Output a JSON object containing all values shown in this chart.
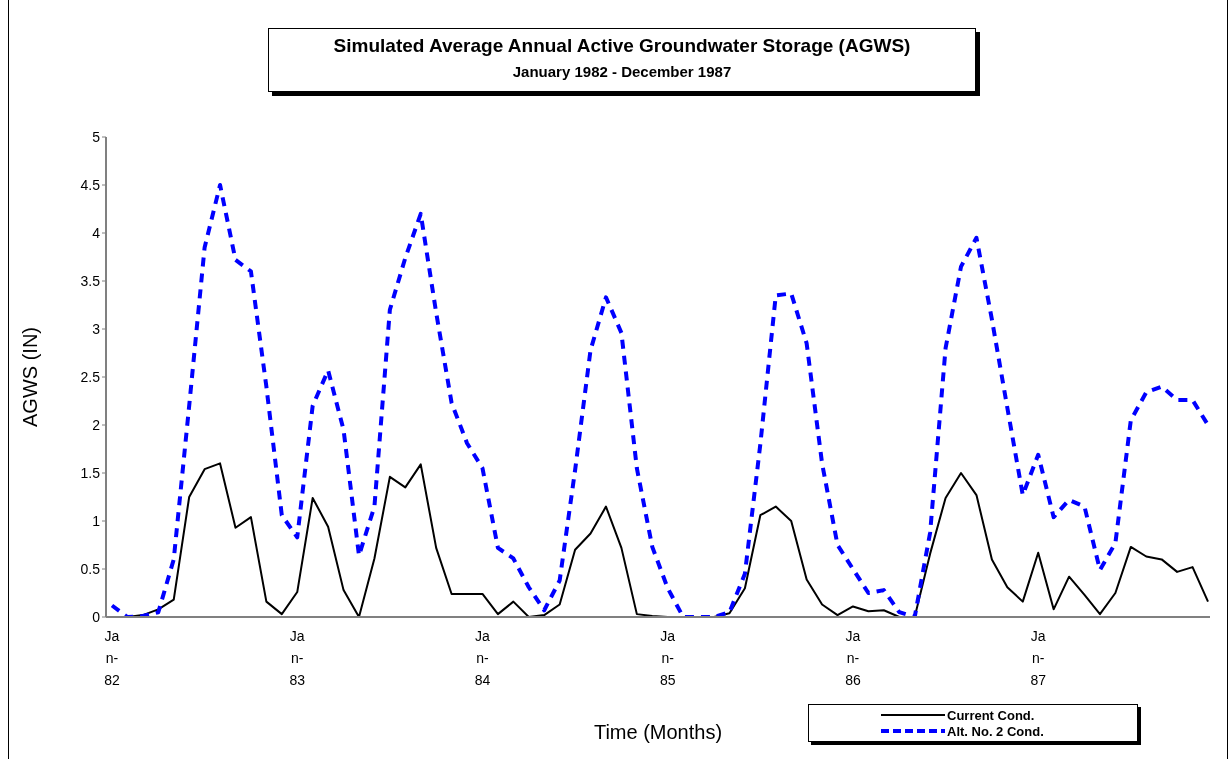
{
  "chart_data": {
    "type": "line",
    "title": "Simulated Average Annual Active Groundwater Storage (AGWS)",
    "subtitle": "January 1982 - December 1987",
    "xlabel": "Time (Months)",
    "ylabel": "AGWS (IN)",
    "categories": [
      "Jan-82",
      null,
      null,
      null,
      null,
      null,
      null,
      null,
      null,
      null,
      null,
      null,
      "Jan-83",
      null,
      null,
      null,
      null,
      null,
      null,
      null,
      null,
      null,
      null,
      null,
      "Jan-84",
      null,
      null,
      null,
      null,
      null,
      null,
      null,
      null,
      null,
      null,
      null,
      "Jan-85",
      null,
      null,
      null,
      null,
      null,
      null,
      null,
      null,
      null,
      null,
      null,
      "Jan-86",
      null,
      null,
      null,
      null,
      null,
      null,
      null,
      null,
      null,
      null,
      null,
      "Jan-87",
      null,
      null,
      null,
      null,
      null,
      null,
      null,
      null,
      null,
      null,
      null
    ],
    "ylim": [
      0,
      5
    ],
    "yticks": [
      0,
      0.5,
      1,
      1.5,
      2,
      2.5,
      3,
      3.5,
      4,
      4.5,
      5
    ],
    "grid": false,
    "legend": "bottom right",
    "marker": "none",
    "series": [
      {
        "name": "Current Cond.",
        "color": "#000000",
        "line_style": "solid",
        "values": [
          0,
          0,
          0.02,
          0.08,
          0.18,
          1.25,
          1.54,
          1.6,
          0.93,
          1.04,
          0.16,
          0.03,
          0.26,
          1.24,
          0.94,
          0.28,
          0,
          0.61,
          1.46,
          1.35,
          1.59,
          0.72,
          0.24,
          0.24,
          0.24,
          0.03,
          0.16,
          0,
          0.02,
          0.13,
          0.7,
          0.87,
          1.15,
          0.72,
          0.03,
          0.01,
          0,
          0,
          0,
          0,
          0.04,
          0.3,
          1.06,
          1.15,
          1,
          0.39,
          0.13,
          0.02,
          0.11,
          0.06,
          0.07,
          0,
          0,
          0.66,
          1.24,
          1.5,
          1.27,
          0.6,
          0.31,
          0.16,
          0.67,
          0.08,
          0.42,
          0.23,
          0.03,
          0.25,
          0.73,
          0.63,
          0.6,
          0.47,
          0.52,
          0.16
        ]
      },
      {
        "name": "Alt. No. 2 Cond.",
        "color": "#0000ff",
        "line_style": "dashed",
        "values": [
          0.12,
          0,
          0.01,
          0.05,
          0.6,
          2.2,
          3.85,
          4.5,
          3.72,
          3.6,
          2.4,
          1.06,
          0.83,
          2.2,
          2.57,
          1.95,
          0.64,
          1.15,
          3.2,
          3.74,
          4.2,
          3.17,
          2.23,
          1.81,
          1.55,
          0.72,
          0.61,
          0.31,
          0.07,
          0.38,
          1.53,
          2.78,
          3.33,
          2.96,
          1.55,
          0.73,
          0.3,
          0,
          0,
          0,
          0.05,
          0.45,
          1.8,
          3.35,
          3.37,
          2.85,
          1.6,
          0.75,
          0.5,
          0.25,
          0.28,
          0.05,
          0,
          0.88,
          2.8,
          3.65,
          3.95,
          3.1,
          2.18,
          1.27,
          1.69,
          1.04,
          1.22,
          1.15,
          0.49,
          0.77,
          2.05,
          2.34,
          2.4,
          2.26,
          2.26,
          2.0
        ]
      }
    ]
  }
}
